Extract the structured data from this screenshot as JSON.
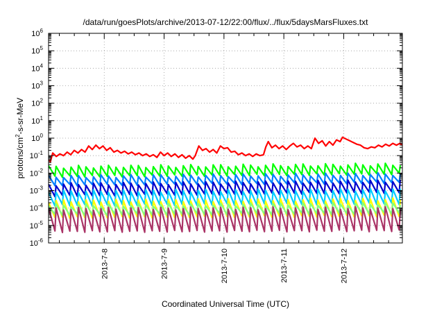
{
  "chart_data": {
    "type": "line",
    "title": "/data/run/goesPlots/archive/2013-07-12/22:00/flux/../flux/5daysMarsFluxes.txt",
    "xlabel": "Coordinated Universal Time (UTC)",
    "ylabel_parts": {
      "pre": "protons/cm",
      "sup": "2",
      "post": "-s-sr-MeV"
    },
    "y_scale": "log",
    "ylim_exponents": [
      -6,
      6
    ],
    "y_tick_labels": [
      {
        "base": "10",
        "exp": "-6"
      },
      {
        "base": "10",
        "exp": "-5"
      },
      {
        "base": "10",
        "exp": "-4"
      },
      {
        "base": "10",
        "exp": "-3"
      },
      {
        "base": "10",
        "exp": "-2"
      },
      {
        "base": "10",
        "exp": "-1"
      },
      {
        "base": "10",
        "exp": "0"
      },
      {
        "base": "10",
        "exp": "1"
      },
      {
        "base": "10",
        "exp": "2"
      },
      {
        "base": "10",
        "exp": "3"
      },
      {
        "base": "10",
        "exp": "4"
      },
      {
        "base": "10",
        "exp": "5"
      },
      {
        "base": "10",
        "exp": "6"
      }
    ],
    "x_range_days": [
      "2013-07-07",
      "2013-07-13"
    ],
    "xlim_days": [
      7.07,
      12.98
    ],
    "x_tick_labels": [
      "2013-7-8",
      "2013-7-9",
      "2013-7-10",
      "2013-7-11",
      "2013-7-12"
    ],
    "x_ticks_day": [
      8,
      9,
      10,
      11,
      12
    ],
    "grid": true,
    "grid_style": "dotted",
    "series": [
      {
        "color": "#ff0000",
        "sawtooth": false,
        "points": [
          [
            7.07,
            -1.25
          ],
          [
            7.1,
            -1.35
          ],
          [
            7.14,
            -0.85
          ],
          [
            7.2,
            -1.05
          ],
          [
            7.26,
            -0.9
          ],
          [
            7.32,
            -1.0
          ],
          [
            7.38,
            -0.8
          ],
          [
            7.44,
            -0.95
          ],
          [
            7.5,
            -0.7
          ],
          [
            7.56,
            -0.85
          ],
          [
            7.62,
            -0.65
          ],
          [
            7.68,
            -0.8
          ],
          [
            7.74,
            -0.45
          ],
          [
            7.8,
            -0.65
          ],
          [
            7.86,
            -0.4
          ],
          [
            7.92,
            -0.6
          ],
          [
            7.98,
            -0.45
          ],
          [
            8.04,
            -0.7
          ],
          [
            8.1,
            -0.55
          ],
          [
            8.16,
            -0.8
          ],
          [
            8.22,
            -0.7
          ],
          [
            8.28,
            -0.85
          ],
          [
            8.34,
            -0.75
          ],
          [
            8.4,
            -0.9
          ],
          [
            8.46,
            -0.8
          ],
          [
            8.52,
            -0.95
          ],
          [
            8.58,
            -0.85
          ],
          [
            8.64,
            -1.0
          ],
          [
            8.7,
            -0.9
          ],
          [
            8.76,
            -1.05
          ],
          [
            8.82,
            -0.95
          ],
          [
            8.88,
            -1.1
          ],
          [
            8.94,
            -0.8
          ],
          [
            9.0,
            -1.0
          ],
          [
            9.06,
            -0.85
          ],
          [
            9.12,
            -1.05
          ],
          [
            9.18,
            -0.9
          ],
          [
            9.24,
            -1.1
          ],
          [
            9.3,
            -0.95
          ],
          [
            9.36,
            -1.15
          ],
          [
            9.42,
            -1.0
          ],
          [
            9.48,
            -1.2
          ],
          [
            9.52,
            -1.0
          ],
          [
            9.58,
            -0.45
          ],
          [
            9.64,
            -0.7
          ],
          [
            9.7,
            -0.6
          ],
          [
            9.76,
            -0.8
          ],
          [
            9.82,
            -0.65
          ],
          [
            9.88,
            -0.85
          ],
          [
            9.94,
            -0.45
          ],
          [
            10.0,
            -0.6
          ],
          [
            10.06,
            -0.55
          ],
          [
            10.12,
            -0.8
          ],
          [
            10.18,
            -0.75
          ],
          [
            10.24,
            -0.95
          ],
          [
            10.3,
            -0.85
          ],
          [
            10.36,
            -1.0
          ],
          [
            10.42,
            -0.9
          ],
          [
            10.48,
            -1.05
          ],
          [
            10.54,
            -0.9
          ],
          [
            10.6,
            -1.0
          ],
          [
            10.66,
            -0.95
          ],
          [
            10.7,
            -0.5
          ],
          [
            10.74,
            -0.2
          ],
          [
            10.8,
            -0.55
          ],
          [
            10.86,
            -0.4
          ],
          [
            10.92,
            -0.6
          ],
          [
            10.98,
            -0.45
          ],
          [
            11.04,
            -0.65
          ],
          [
            11.1,
            -0.45
          ],
          [
            11.16,
            -0.3
          ],
          [
            11.22,
            -0.5
          ],
          [
            11.28,
            -0.4
          ],
          [
            11.34,
            -0.6
          ],
          [
            11.4,
            -0.45
          ],
          [
            11.46,
            -0.6
          ],
          [
            11.52,
            0.0
          ],
          [
            11.58,
            -0.3
          ],
          [
            11.64,
            -0.15
          ],
          [
            11.7,
            -0.45
          ],
          [
            11.76,
            -0.2
          ],
          [
            11.82,
            -0.4
          ],
          [
            11.88,
            -0.1
          ],
          [
            11.94,
            -0.2
          ],
          [
            11.98,
            0.05
          ],
          [
            12.04,
            -0.05
          ],
          [
            12.1,
            -0.15
          ],
          [
            12.16,
            -0.25
          ],
          [
            12.22,
            -0.35
          ],
          [
            12.28,
            -0.4
          ],
          [
            12.34,
            -0.55
          ],
          [
            12.4,
            -0.6
          ],
          [
            12.46,
            -0.5
          ],
          [
            12.52,
            -0.55
          ],
          [
            12.58,
            -0.4
          ],
          [
            12.64,
            -0.5
          ],
          [
            12.7,
            -0.35
          ],
          [
            12.76,
            -0.45
          ],
          [
            12.82,
            -0.3
          ],
          [
            12.88,
            -0.4
          ],
          [
            12.94,
            -0.3
          ],
          [
            12.98,
            -0.4
          ]
        ]
      },
      {
        "color": "#00ff00",
        "sawtooth": true,
        "period": 0.125,
        "min_start": -2.2,
        "min_end": -2.05,
        "amplitude": 0.55
      },
      {
        "color": "#0080ff",
        "sawtooth": true,
        "period": 0.125,
        "min_start": -2.7,
        "min_end": -2.55,
        "amplitude": 0.5
      },
      {
        "color": "#0000cc",
        "sawtooth": true,
        "period": 0.125,
        "min_start": -3.3,
        "min_end": -3.1,
        "amplitude": 0.65
      },
      {
        "color": "#00ccff",
        "sawtooth": true,
        "period": 0.125,
        "min_start": -3.85,
        "min_end": -3.75,
        "amplitude": 0.8
      },
      {
        "color": "#ffff00",
        "sawtooth": true,
        "period": 0.125,
        "min_start": -4.55,
        "min_end": -4.45,
        "amplitude": 0.95
      },
      {
        "color": "#80ff80",
        "sawtooth": true,
        "period": 0.125,
        "min_start": -4.4,
        "min_end": -4.3,
        "amplitude": 0.55
      },
      {
        "color": "#aa3366",
        "sawtooth": true,
        "period": 0.125,
        "min_start": -5.35,
        "min_end": -5.3,
        "amplitude": 1.3
      }
    ]
  }
}
